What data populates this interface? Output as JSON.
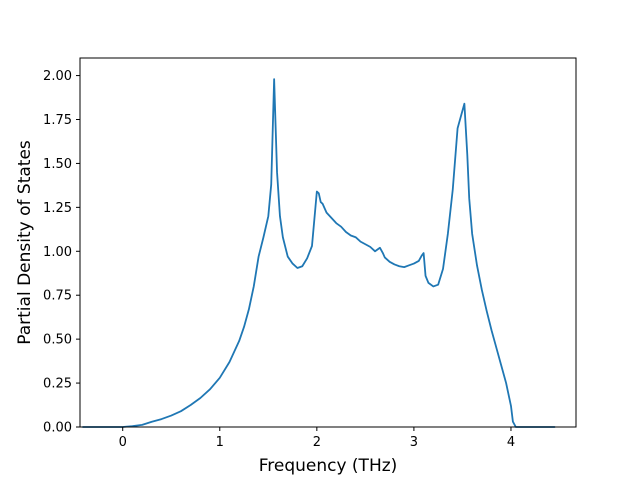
{
  "chart_data": {
    "type": "line",
    "title": "",
    "xlabel": "Frequency (THz)",
    "ylabel": "Partial Density of States",
    "xlim": [
      -0.44,
      4.67
    ],
    "ylim": [
      0,
      2.1
    ],
    "xticks": [
      0,
      1,
      2,
      3,
      4
    ],
    "xtick_labels": [
      "0",
      "1",
      "2",
      "3",
      "4"
    ],
    "yticks": [
      0,
      0.25,
      0.5,
      0.75,
      1.0,
      1.25,
      1.5,
      1.75,
      2.0
    ],
    "ytick_labels": [
      "0.00",
      "0.25",
      "0.50",
      "0.75",
      "1.00",
      "1.25",
      "1.50",
      "1.75",
      "2.00"
    ],
    "grid": false,
    "series": [
      {
        "color": "#1f77b4",
        "x": [
          -0.41,
          -0.2,
          0.0,
          0.1,
          0.2,
          0.3,
          0.4,
          0.5,
          0.6,
          0.7,
          0.8,
          0.9,
          1.0,
          1.1,
          1.2,
          1.25,
          1.3,
          1.35,
          1.4,
          1.45,
          1.5,
          1.53,
          1.56,
          1.59,
          1.62,
          1.65,
          1.7,
          1.75,
          1.8,
          1.85,
          1.9,
          1.95,
          2.0,
          2.02,
          2.04,
          2.06,
          2.08,
          2.1,
          2.15,
          2.2,
          2.25,
          2.3,
          2.35,
          2.4,
          2.45,
          2.5,
          2.55,
          2.6,
          2.65,
          2.68,
          2.7,
          2.75,
          2.8,
          2.85,
          2.9,
          2.95,
          3.0,
          3.05,
          3.08,
          3.1,
          3.12,
          3.15,
          3.2,
          3.25,
          3.3,
          3.35,
          3.4,
          3.45,
          3.5,
          3.52,
          3.55,
          3.57,
          3.6,
          3.65,
          3.7,
          3.75,
          3.8,
          3.85,
          3.9,
          3.95,
          4.0,
          4.02,
          4.05,
          4.1,
          4.2,
          4.3,
          4.45
        ],
        "y": [
          0.0,
          0.0,
          0.0,
          0.005,
          0.012,
          0.03,
          0.045,
          0.065,
          0.09,
          0.125,
          0.165,
          0.215,
          0.28,
          0.37,
          0.49,
          0.57,
          0.67,
          0.8,
          0.97,
          1.08,
          1.2,
          1.38,
          1.98,
          1.45,
          1.2,
          1.08,
          0.97,
          0.93,
          0.905,
          0.915,
          0.96,
          1.03,
          1.34,
          1.33,
          1.28,
          1.27,
          1.245,
          1.22,
          1.19,
          1.16,
          1.14,
          1.11,
          1.09,
          1.08,
          1.055,
          1.04,
          1.025,
          1.0,
          1.02,
          0.99,
          0.965,
          0.94,
          0.925,
          0.915,
          0.91,
          0.92,
          0.93,
          0.945,
          0.975,
          0.99,
          0.86,
          0.82,
          0.8,
          0.81,
          0.9,
          1.1,
          1.35,
          1.7,
          1.8,
          1.84,
          1.55,
          1.3,
          1.1,
          0.92,
          0.78,
          0.66,
          0.55,
          0.45,
          0.35,
          0.25,
          0.12,
          0.03,
          0.0,
          0.0,
          0.0,
          0.0,
          0.0
        ]
      }
    ]
  }
}
